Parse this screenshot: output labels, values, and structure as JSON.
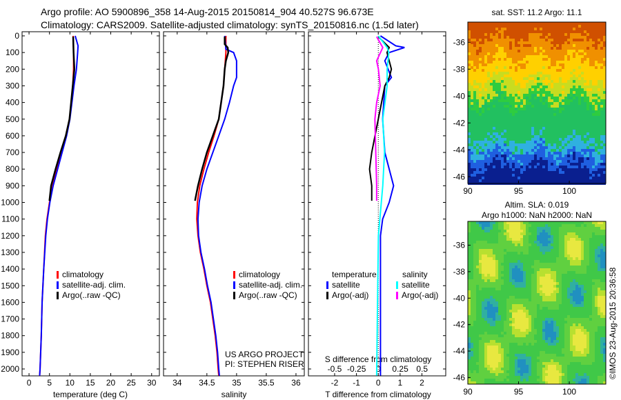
{
  "header": {
    "line1": "Argo profile: AO 5900896_358 14-Aug-2015 20150814_904 40.527S 96.673E",
    "line2": "Climatology: CARS2009. Satellite-adjusted climatology: synTS_20150816.nc (1.5d later)"
  },
  "credit": "©IMOS 23-Aug-2015 20:36:58",
  "project": {
    "line1": "US ARGO PROJECT",
    "line2": "PI: STEPHEN RISER"
  },
  "colors": {
    "clim": "#ff0000",
    "sat": "#0000ff",
    "argo": "#000000",
    "s_sat": "#00ffff",
    "s_argo": "#ff00ff"
  },
  "chart_data": [
    {
      "type": "line",
      "name": "temperature",
      "xlabel": "temperature (deg C)",
      "xlim": [
        -1.7,
        31.9
      ],
      "ylim": [
        0,
        2040
      ],
      "xticks": [
        0,
        5,
        10,
        15,
        20,
        25,
        30
      ],
      "yticks": [
        0,
        100,
        200,
        300,
        400,
        500,
        600,
        700,
        800,
        900,
        1000,
        1100,
        1200,
        1300,
        1400,
        1500,
        1600,
        1700,
        1800,
        1900,
        2000
      ],
      "legend": [
        "climatology",
        "satellite-adj. clim.",
        "Argo(..raw -QC)"
      ],
      "series": [
        {
          "name": "climatology",
          "depth": [
            0,
            100,
            200,
            300,
            400,
            500,
            600,
            700,
            800,
            900,
            1000,
            1100,
            1200,
            1400,
            1600,
            1800,
            2000,
            2040
          ],
          "values": [
            10.8,
            10.9,
            10.9,
            10.7,
            10.4,
            9.9,
            9.0,
            7.9,
            6.8,
            5.8,
            5.0,
            4.4,
            4.0,
            3.6,
            3.2,
            3.0,
            2.7,
            2.6
          ]
        },
        {
          "name": "satellite-adj. clim.",
          "depth": [
            0,
            60,
            100,
            200,
            300,
            400,
            500,
            600,
            700,
            800,
            900,
            1000,
            1100,
            1200,
            1400,
            1600,
            1800,
            2000,
            2040
          ],
          "values": [
            11.3,
            12.0,
            11.9,
            11.6,
            11.0,
            10.5,
            10.0,
            9.2,
            8.1,
            7.0,
            5.9,
            5.1,
            4.5,
            4.1,
            3.6,
            3.2,
            3.0,
            2.7,
            2.6
          ]
        },
        {
          "name": "Argo(..raw -QC)",
          "depth": [
            5,
            100,
            200,
            300,
            400,
            500,
            600,
            700,
            800,
            900,
            990
          ],
          "values": [
            10.8,
            10.9,
            11.1,
            10.7,
            10.3,
            9.9,
            9.0,
            7.7,
            6.5,
            5.4,
            5.0
          ]
        }
      ]
    },
    {
      "type": "line",
      "name": "salinity",
      "xlabel": "salinity",
      "xlim": [
        33.77,
        36.14
      ],
      "ylim": [
        0,
        2040
      ],
      "xticks": [
        34,
        34.5,
        35,
        35.5,
        36
      ],
      "legend": [
        "climatology",
        "satellite-adj. clim.",
        "Argo(..raw -QC)"
      ],
      "series": [
        {
          "name": "climatology",
          "depth": [
            0,
            100,
            200,
            300,
            400,
            500,
            600,
            700,
            800,
            900,
            1000,
            1100,
            1200,
            1300,
            1400,
            1500,
            1600,
            1700,
            1800,
            1900,
            2000,
            2040
          ],
          "values": [
            34.82,
            34.82,
            34.8,
            34.78,
            34.74,
            34.7,
            34.62,
            34.53,
            34.45,
            34.38,
            34.34,
            34.33,
            34.35,
            34.39,
            34.45,
            34.5,
            34.56,
            34.6,
            34.64,
            34.67,
            34.69,
            34.7
          ]
        },
        {
          "name": "satellite-adj. clim.",
          "depth": [
            0,
            80,
            100,
            150,
            250,
            300,
            400,
            500,
            600,
            700,
            800,
            900,
            1000,
            1100,
            1200,
            1300,
            1400,
            1500,
            1600,
            1700,
            1800,
            1900,
            2000,
            2040
          ],
          "values": [
            34.8,
            34.82,
            34.95,
            35.0,
            35.0,
            34.95,
            34.88,
            34.8,
            34.7,
            34.6,
            34.5,
            34.42,
            34.37,
            34.35,
            34.36,
            34.4,
            34.46,
            34.51,
            34.57,
            34.61,
            34.65,
            34.68,
            34.7,
            34.71
          ]
        },
        {
          "name": "Argo(..raw -QC)",
          "depth": [
            5,
            50,
            70,
            100,
            150,
            200,
            300,
            500,
            700,
            800,
            900,
            990
          ],
          "values": [
            34.8,
            34.8,
            34.85,
            34.86,
            34.82,
            34.8,
            34.78,
            34.7,
            34.5,
            34.42,
            34.35,
            34.3
          ]
        }
      ]
    },
    {
      "type": "line",
      "name": "difference",
      "xlabel": "T difference from climatology",
      "x2label": "S difference from climatology",
      "xlim": [
        -3.2,
        3.09
      ],
      "s_xlim": [
        -0.8,
        0.77
      ],
      "ylim": [
        0,
        2040
      ],
      "xticks": [
        -2,
        -1,
        0,
        1,
        2
      ],
      "s_xticks": [
        -0.5,
        -0.25,
        0,
        0.25,
        0.5
      ],
      "legend": {
        "t_title": "temperature",
        "s_title": "salinity",
        "t": [
          "satellite",
          "Argo(-adj)"
        ],
        "s": [
          "satellite",
          "Argo(-adj)"
        ]
      },
      "series": [
        {
          "name": "T satellite",
          "axis": "T",
          "depth": [
            0,
            60,
            70,
            100,
            150,
            250,
            300,
            500,
            700,
            800,
            900,
            1000,
            1100,
            1200,
            1600,
            2040
          ],
          "values": [
            0.1,
            0.8,
            1.2,
            0.5,
            0.3,
            0.6,
            0.3,
            0.2,
            0.3,
            0.5,
            0.7,
            0.5,
            0.2,
            0.1,
            0.1,
            0.1
          ]
        },
        {
          "name": "T Argo(-adj)",
          "axis": "T",
          "depth": [
            5,
            70,
            100,
            150,
            200,
            250,
            300,
            500,
            700,
            800,
            900,
            990
          ],
          "values": [
            0.0,
            0.5,
            0.4,
            0.5,
            0.6,
            0.5,
            0.3,
            0.0,
            -0.3,
            -0.4,
            -0.3,
            -0.3
          ]
        },
        {
          "name": "S satellite",
          "axis": "S",
          "depth": [
            0,
            70,
            100,
            200,
            300,
            500,
            700,
            900,
            1200,
            1600,
            2040
          ],
          "values": [
            0.0,
            0.1,
            0.12,
            0.1,
            0.1,
            0.05,
            0.07,
            0.05,
            0.0,
            -0.01,
            -0.02
          ]
        },
        {
          "name": "S Argo(-adj)",
          "axis": "S",
          "depth": [
            5,
            70,
            150,
            200,
            300,
            400,
            500,
            700,
            900,
            990
          ],
          "values": [
            -0.02,
            0.05,
            -0.02,
            0.0,
            0.02,
            -0.02,
            -0.04,
            -0.03,
            -0.02,
            -0.02
          ]
        }
      ]
    },
    {
      "type": "heatmap",
      "name": "sst-map",
      "title": "sat. SST: 11.2 Argo: 11.1",
      "xlim": [
        90,
        103.6
      ],
      "ylim": [
        -46.5,
        -34.5
      ],
      "xticks": [
        90,
        95,
        100
      ],
      "yticks": [
        -36,
        -38,
        -40,
        -42,
        -44,
        -46
      ]
    },
    {
      "type": "heatmap",
      "name": "sla-map",
      "title": "Altim. SLA: 0.019",
      "subtitle": "Argo h1000: NaN h2000: NaN",
      "xlim": [
        90,
        103.6
      ],
      "ylim": [
        -46.5,
        -34.2
      ],
      "xticks": [
        90,
        95,
        100
      ],
      "yticks": [
        -36,
        -38,
        -40,
        -42,
        -44,
        -46
      ]
    }
  ]
}
